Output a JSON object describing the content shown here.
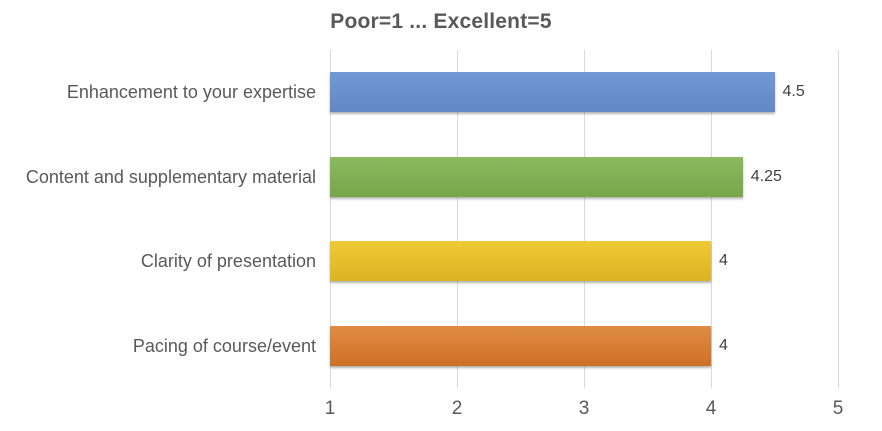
{
  "chart_data": {
    "type": "bar",
    "orientation": "horizontal",
    "title": "Poor=1 ... Excellent=5",
    "categories": [
      "Enhancement to your expertise",
      "Content and supplementary material",
      "Clarity of presentation",
      "Pacing of course/event"
    ],
    "values": [
      4.5,
      4.25,
      4,
      4
    ],
    "data_labels": [
      "4.5",
      "4.25",
      "4",
      "4"
    ],
    "xlabel": "",
    "ylabel": "",
    "xlim": [
      1,
      5
    ],
    "xticks": [
      "1",
      "2",
      "3",
      "4",
      "5"
    ],
    "grid": "vertical",
    "legend": "none",
    "bar_colors": [
      {
        "name": "blue",
        "top": "#7099d5",
        "bottom": "#6288c5"
      },
      {
        "name": "green",
        "top": "#8cba5f",
        "bottom": "#78a54a"
      },
      {
        "name": "yellow",
        "top": "#efca35",
        "bottom": "#dbb323"
      },
      {
        "name": "orange",
        "top": "#e08c44",
        "bottom": "#cd7026"
      }
    ],
    "colors": {
      "title_text": "#595959",
      "category_text": "#595959",
      "value_text": "#404040",
      "tick_text": "#595959",
      "gridline": "#d9d9d9",
      "background": "#ffffff"
    }
  }
}
